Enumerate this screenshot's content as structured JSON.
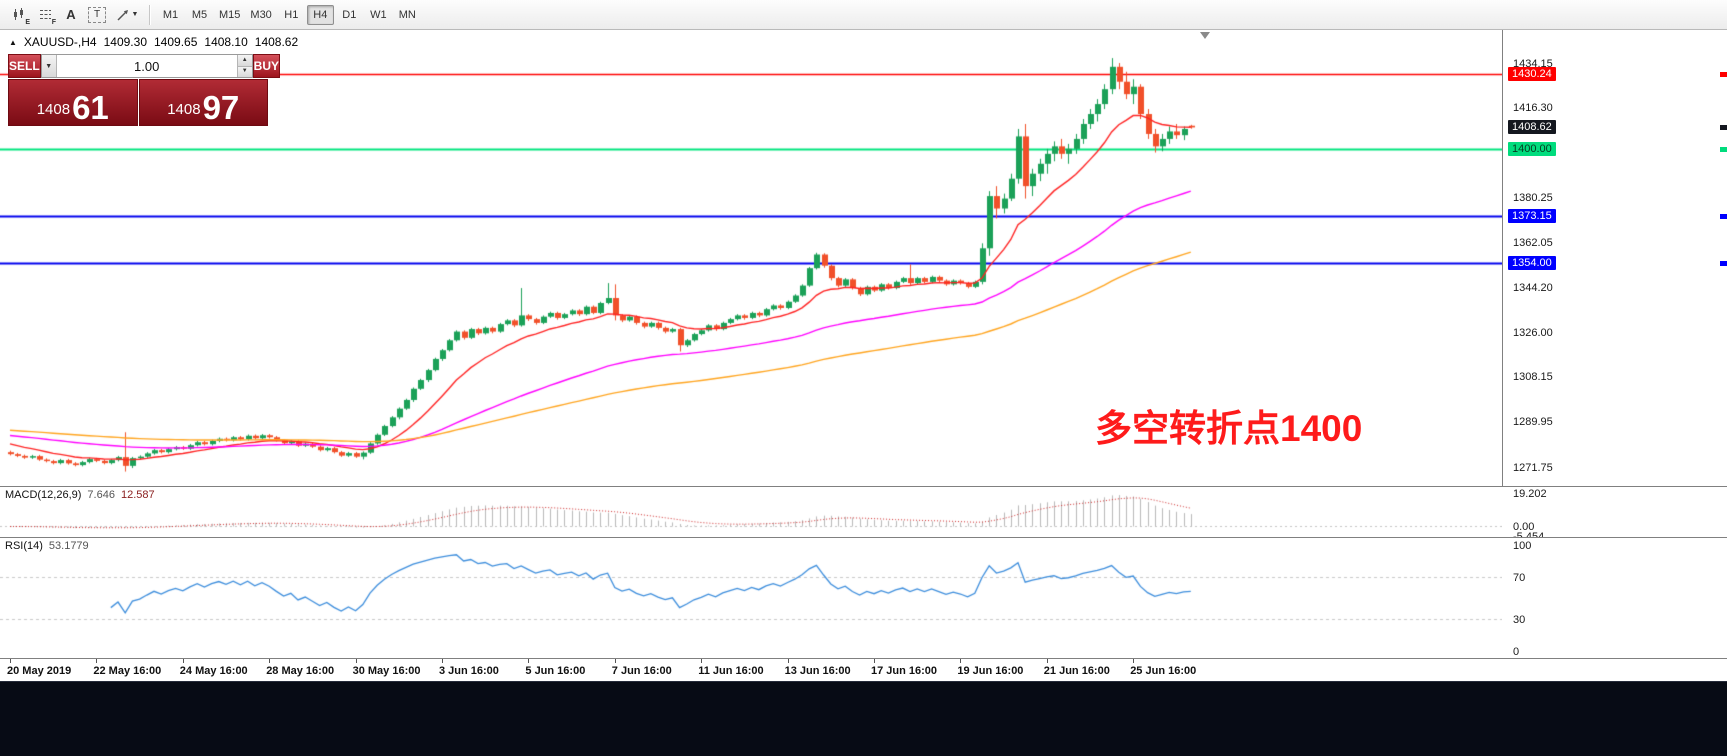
{
  "toolbar": {
    "timeframes": [
      "M1",
      "M5",
      "M15",
      "M30",
      "H1",
      "H4",
      "D1",
      "W1",
      "MN"
    ],
    "active_timeframe": "H4",
    "icon_names": [
      "chart-objects-icon",
      "lines-grid-icon",
      "text-a-icon",
      "text-label-icon",
      "trend-cursor-icon"
    ],
    "text_a": "A",
    "text_t": "T"
  },
  "header": {
    "marker": "▲",
    "symbol": "XAUUSD-,H4",
    "open": "1409.30",
    "high": "1409.65",
    "low": "1408.10",
    "close": "1408.62"
  },
  "trade_panel": {
    "sell": "SELL",
    "buy": "BUY",
    "volume": "1.00",
    "bid": {
      "main": "1408",
      "pips": "61"
    },
    "ask": {
      "main": "1408",
      "pips": "97"
    }
  },
  "annotation": {
    "text": "多空转折点1400",
    "color": "#fe1b1b"
  },
  "price_axis": {
    "ticks": [
      {
        "label": "1434.15",
        "price": 1434.15
      },
      {
        "label": "1416.30",
        "price": 1416.3
      },
      {
        "label": "1380.25",
        "price": 1380.25
      },
      {
        "label": "1362.05",
        "price": 1362.05
      },
      {
        "label": "1344.20",
        "price": 1344.2
      },
      {
        "label": "1326.00",
        "price": 1326.0
      },
      {
        "label": "1308.15",
        "price": 1308.15
      },
      {
        "label": "1289.95",
        "price": 1289.95
      },
      {
        "label": "1271.75",
        "price": 1271.75
      }
    ],
    "badges": [
      {
        "label": "1430.24",
        "price": 1430.24,
        "bg": "#ff0000",
        "fg": "#ffffff"
      },
      {
        "label": "1408.62",
        "price": 1408.62,
        "bg": "#14171f",
        "fg": "#ffffff"
      },
      {
        "label": "1400.00",
        "price": 1400.0,
        "bg": "#00dc7d",
        "fg": "#05391f"
      },
      {
        "label": "1373.15",
        "price": 1373.15,
        "bg": "#0000ff",
        "fg": "#ffffff"
      },
      {
        "label": "1354.00",
        "price": 1354.0,
        "bg": "#0000ff",
        "fg": "#ffffff"
      }
    ]
  },
  "macd": {
    "name": "MACD(12,26,9)",
    "main_value": "7.646",
    "signal_value": "12.587",
    "axis": [
      "19.202",
      "0.00",
      "-5.454"
    ]
  },
  "rsi": {
    "name": "RSI(14)",
    "value": "53.1779",
    "axis": [
      "100",
      "70",
      "30",
      "0"
    ]
  },
  "time_axis": [
    {
      "label": "20 May 2019",
      "bar": 0
    },
    {
      "label": "22 May 16:00",
      "bar": 12
    },
    {
      "label": "24 May 16:00",
      "bar": 24
    },
    {
      "label": "28 May 16:00",
      "bar": 36
    },
    {
      "label": "30 May 16:00",
      "bar": 48
    },
    {
      "label": "3 Jun 16:00",
      "bar": 60
    },
    {
      "label": "5 Jun 16:00",
      "bar": 72
    },
    {
      "label": "7 Jun 16:00",
      "bar": 84
    },
    {
      "label": "11 Jun 16:00",
      "bar": 96
    },
    {
      "label": "13 Jun 16:00",
      "bar": 108
    },
    {
      "label": "17 Jun 16:00",
      "bar": 120
    },
    {
      "label": "19 Jun 16:00",
      "bar": 132
    },
    {
      "label": "21 Jun 16:00",
      "bar": 144
    },
    {
      "label": "25 Jun 16:00",
      "bar": 156
    }
  ],
  "chart_data": {
    "type": "candlestick",
    "symbol": "XAUUSD",
    "timeframe": "H4",
    "price_range": [
      1266,
      1447
    ],
    "up_color": "#1ba158",
    "down_color": "#f1502a",
    "hlines": [
      {
        "price": 1430.24,
        "color": "#ff0000",
        "width": 1.4
      },
      {
        "price": 1400.0,
        "color": "#00e57e",
        "width": 2
      },
      {
        "price": 1373.15,
        "color": "#0000ee",
        "width": 2
      },
      {
        "price": 1354.0,
        "color": "#0000ee",
        "width": 2
      }
    ],
    "mas": [
      {
        "period": 13,
        "seed": 1282,
        "color": "#ff2222",
        "width": 1.4
      },
      {
        "period": 55,
        "seed": 1285,
        "color": "#ff00ff",
        "width": 1.4
      },
      {
        "period": 110,
        "seed": 1287,
        "color": "#ffa520",
        "width": 1.4
      }
    ],
    "macd": {
      "fast": 12,
      "slow": 26,
      "signal": 9,
      "hist_color": "#b9b9b9",
      "signal_color": "#cc2222"
    },
    "rsi": {
      "period": 14,
      "color": "#3c8ddc",
      "levels": [
        70,
        30
      ]
    },
    "candles": [
      [
        1278.0,
        1278.6,
        1276.7,
        1277.2
      ],
      [
        1277.2,
        1277.7,
        1276.0,
        1276.5
      ],
      [
        1276.5,
        1277.0,
        1275.3,
        1275.8
      ],
      [
        1275.8,
        1276.9,
        1275.3,
        1276.4
      ],
      [
        1276.4,
        1276.9,
        1274.5,
        1275.0
      ],
      [
        1275.0,
        1275.5,
        1273.9,
        1274.4
      ],
      [
        1274.4,
        1274.9,
        1273.1,
        1273.6
      ],
      [
        1273.6,
        1275.3,
        1273.1,
        1274.8
      ],
      [
        1274.8,
        1275.3,
        1273.0,
        1273.5
      ],
      [
        1273.5,
        1274.0,
        1272.3,
        1272.8
      ],
      [
        1272.8,
        1274.5,
        1272.3,
        1274.0
      ],
      [
        1274.0,
        1275.7,
        1273.5,
        1275.2
      ],
      [
        1275.2,
        1275.7,
        1274.0,
        1274.5
      ],
      [
        1274.5,
        1275.0,
        1273.1,
        1273.6
      ],
      [
        1273.6,
        1275.3,
        1273.1,
        1274.8
      ],
      [
        1274.8,
        1276.5,
        1274.3,
        1276.0
      ],
      [
        1276.0,
        1286.0,
        1270.2,
        1272.5
      ],
      [
        1272.5,
        1276.1,
        1271.6,
        1275.6
      ],
      [
        1275.6,
        1276.7,
        1275.1,
        1276.2
      ],
      [
        1276.2,
        1278.0,
        1275.7,
        1277.5
      ],
      [
        1277.5,
        1279.3,
        1277.0,
        1278.8
      ],
      [
        1278.8,
        1279.3,
        1277.5,
        1278.0
      ],
      [
        1278.0,
        1279.7,
        1277.5,
        1279.2
      ],
      [
        1279.2,
        1280.5,
        1278.7,
        1280.0
      ],
      [
        1280.0,
        1280.5,
        1278.9,
        1279.4
      ],
      [
        1279.4,
        1281.3,
        1278.9,
        1280.8
      ],
      [
        1280.8,
        1282.5,
        1280.3,
        1282.0
      ],
      [
        1282.0,
        1282.5,
        1280.7,
        1281.2
      ],
      [
        1281.2,
        1283.0,
        1280.7,
        1282.5
      ],
      [
        1282.5,
        1283.9,
        1282.0,
        1283.4
      ],
      [
        1283.4,
        1283.9,
        1282.3,
        1282.8
      ],
      [
        1282.8,
        1284.5,
        1282.3,
        1284.0
      ],
      [
        1284.0,
        1284.5,
        1282.7,
        1283.2
      ],
      [
        1283.2,
        1285.1,
        1282.7,
        1284.6
      ],
      [
        1284.6,
        1285.1,
        1283.1,
        1283.6
      ],
      [
        1283.6,
        1285.3,
        1283.1,
        1284.8
      ],
      [
        1284.8,
        1285.3,
        1283.5,
        1284.0
      ],
      [
        1284.0,
        1284.5,
        1282.3,
        1282.8
      ],
      [
        1282.8,
        1283.3,
        1281.1,
        1281.6
      ],
      [
        1281.6,
        1282.9,
        1281.1,
        1282.4
      ],
      [
        1282.4,
        1282.9,
        1280.1,
        1280.6
      ],
      [
        1280.6,
        1281.9,
        1280.1,
        1281.4
      ],
      [
        1281.4,
        1281.9,
        1279.7,
        1280.2
      ],
      [
        1280.2,
        1280.7,
        1278.3,
        1278.8
      ],
      [
        1278.8,
        1280.1,
        1278.3,
        1279.6
      ],
      [
        1279.6,
        1280.1,
        1277.5,
        1278.0
      ],
      [
        1278.0,
        1278.5,
        1276.1,
        1276.6
      ],
      [
        1276.6,
        1278.1,
        1276.1,
        1277.6
      ],
      [
        1277.6,
        1278.1,
        1275.7,
        1276.2
      ],
      [
        1276.2,
        1278.3,
        1275.1,
        1277.8
      ],
      [
        1277.8,
        1282.0,
        1277.3,
        1281.5
      ],
      [
        1281.5,
        1285.5,
        1281.0,
        1285.0
      ],
      [
        1285.0,
        1289.0,
        1284.5,
        1288.5
      ],
      [
        1288.5,
        1292.5,
        1288.0,
        1292.0
      ],
      [
        1292.0,
        1296.0,
        1291.2,
        1295.5
      ],
      [
        1295.5,
        1299.5,
        1295.0,
        1299.0
      ],
      [
        1299.0,
        1304.0,
        1298.2,
        1303.5
      ],
      [
        1303.5,
        1307.5,
        1303.0,
        1307.0
      ],
      [
        1307.0,
        1311.5,
        1306.2,
        1311.0
      ],
      [
        1311.0,
        1316.0,
        1310.5,
        1315.5
      ],
      [
        1315.5,
        1319.5,
        1314.7,
        1319.0
      ],
      [
        1319.0,
        1323.5,
        1318.5,
        1323.0
      ],
      [
        1323.0,
        1327.0,
        1322.5,
        1326.5
      ],
      [
        1326.5,
        1327.0,
        1323.3,
        1324.0
      ],
      [
        1324.0,
        1328.0,
        1323.5,
        1327.5
      ],
      [
        1327.5,
        1328.0,
        1325.1,
        1325.8
      ],
      [
        1325.8,
        1328.5,
        1325.3,
        1328.0
      ],
      [
        1328.0,
        1328.5,
        1325.8,
        1326.5
      ],
      [
        1326.5,
        1330.0,
        1326.0,
        1329.5
      ],
      [
        1329.5,
        1331.5,
        1329.0,
        1331.0
      ],
      [
        1331.0,
        1331.5,
        1328.3,
        1329.0
      ],
      [
        1329.0,
        1344.0,
        1328.5,
        1333.0
      ],
      [
        1333.0,
        1333.5,
        1330.8,
        1331.5
      ],
      [
        1331.5,
        1332.0,
        1329.3,
        1330.0
      ],
      [
        1330.0,
        1333.0,
        1329.5,
        1332.5
      ],
      [
        1332.5,
        1334.5,
        1332.0,
        1334.0
      ],
      [
        1334.0,
        1334.5,
        1331.3,
        1332.0
      ],
      [
        1332.0,
        1334.0,
        1331.5,
        1333.5
      ],
      [
        1333.5,
        1335.5,
        1333.0,
        1335.0
      ],
      [
        1335.0,
        1335.5,
        1332.8,
        1333.5
      ],
      [
        1333.5,
        1337.0,
        1333.0,
        1336.5
      ],
      [
        1336.5,
        1337.0,
        1333.5,
        1334.0
      ],
      [
        1334.0,
        1338.5,
        1333.5,
        1338.0
      ],
      [
        1338.0,
        1346.0,
        1337.5,
        1340.0
      ],
      [
        1340.0,
        1345.5,
        1331.0,
        1333.0
      ],
      [
        1333.0,
        1333.5,
        1330.3,
        1331.0
      ],
      [
        1331.0,
        1333.0,
        1330.5,
        1332.5
      ],
      [
        1332.5,
        1333.0,
        1329.3,
        1330.0
      ],
      [
        1330.0,
        1330.5,
        1327.8,
        1328.5
      ],
      [
        1328.5,
        1330.5,
        1328.0,
        1330.0
      ],
      [
        1330.0,
        1330.5,
        1327.3,
        1328.0
      ],
      [
        1328.0,
        1328.5,
        1325.8,
        1326.5
      ],
      [
        1326.5,
        1328.0,
        1326.0,
        1327.5
      ],
      [
        1327.5,
        1328.0,
        1318.5,
        1321.0
      ],
      [
        1321.0,
        1323.5,
        1320.3,
        1323.0
      ],
      [
        1323.0,
        1326.0,
        1322.5,
        1325.5
      ],
      [
        1325.5,
        1327.5,
        1325.0,
        1327.0
      ],
      [
        1327.0,
        1329.5,
        1326.5,
        1329.0
      ],
      [
        1329.0,
        1329.5,
        1326.8,
        1327.5
      ],
      [
        1327.5,
        1330.5,
        1327.0,
        1330.0
      ],
      [
        1330.0,
        1332.0,
        1329.5,
        1331.5
      ],
      [
        1331.5,
        1333.5,
        1331.0,
        1333.0
      ],
      [
        1333.0,
        1333.5,
        1331.3,
        1332.0
      ],
      [
        1332.0,
        1334.5,
        1331.5,
        1334.0
      ],
      [
        1334.0,
        1334.5,
        1332.3,
        1333.0
      ],
      [
        1333.0,
        1336.0,
        1332.5,
        1335.5
      ],
      [
        1335.5,
        1337.5,
        1335.0,
        1337.0
      ],
      [
        1337.0,
        1337.5,
        1335.3,
        1336.0
      ],
      [
        1336.0,
        1339.0,
        1335.5,
        1338.5
      ],
      [
        1338.5,
        1341.5,
        1338.0,
        1341.0
      ],
      [
        1341.0,
        1345.5,
        1340.5,
        1345.0
      ],
      [
        1345.0,
        1352.5,
        1344.5,
        1352.0
      ],
      [
        1352.0,
        1358.2,
        1351.5,
        1357.5
      ],
      [
        1357.5,
        1358.0,
        1352.2,
        1353.0
      ],
      [
        1353.0,
        1353.5,
        1347.1,
        1348.0
      ],
      [
        1348.0,
        1348.5,
        1344.3,
        1345.0
      ],
      [
        1345.0,
        1348.0,
        1344.5,
        1347.5
      ],
      [
        1347.5,
        1348.0,
        1343.4,
        1344.0
      ],
      [
        1344.0,
        1344.5,
        1340.8,
        1341.5
      ],
      [
        1341.5,
        1345.0,
        1341.0,
        1344.5
      ],
      [
        1344.5,
        1345.0,
        1342.4,
        1343.0
      ],
      [
        1343.0,
        1346.0,
        1342.5,
        1345.5
      ],
      [
        1345.5,
        1346.0,
        1343.4,
        1344.0
      ],
      [
        1344.0,
        1347.0,
        1343.5,
        1346.5
      ],
      [
        1346.5,
        1348.5,
        1346.0,
        1348.0
      ],
      [
        1348.0,
        1353.5,
        1345.3,
        1346.0
      ],
      [
        1346.0,
        1348.5,
        1345.5,
        1348.0
      ],
      [
        1348.0,
        1348.5,
        1345.9,
        1346.5
      ],
      [
        1346.5,
        1349.0,
        1346.0,
        1348.5
      ],
      [
        1348.5,
        1349.0,
        1346.4,
        1347.0
      ],
      [
        1347.0,
        1347.5,
        1344.9,
        1345.5
      ],
      [
        1345.5,
        1347.5,
        1345.0,
        1347.0
      ],
      [
        1347.0,
        1347.5,
        1345.4,
        1346.0
      ],
      [
        1346.0,
        1346.5,
        1343.9,
        1344.5
      ],
      [
        1344.5,
        1347.0,
        1344.0,
        1346.5
      ],
      [
        1346.5,
        1362.0,
        1345.5,
        1360.0
      ],
      [
        1360.0,
        1383.0,
        1357.0,
        1381.0
      ],
      [
        1381.0,
        1385.0,
        1372.0,
        1376.0
      ],
      [
        1376.0,
        1382.0,
        1374.0,
        1380.0
      ],
      [
        1380.0,
        1390.0,
        1379.0,
        1388.0
      ],
      [
        1388.0,
        1408.0,
        1386.0,
        1405.0
      ],
      [
        1405.0,
        1410.0,
        1380.0,
        1385.0
      ],
      [
        1385.0,
        1392.0,
        1381.0,
        1390.0
      ],
      [
        1390.0,
        1396.0,
        1387.0,
        1394.0
      ],
      [
        1394.0,
        1400.0,
        1390.0,
        1398.0
      ],
      [
        1398.0,
        1403.0,
        1395.0,
        1401.0
      ],
      [
        1401.0,
        1404.0,
        1396.0,
        1398.0
      ],
      [
        1398.0,
        1402.0,
        1394.0,
        1400.0
      ],
      [
        1400.0,
        1406.0,
        1398.0,
        1404.0
      ],
      [
        1404.0,
        1412.0,
        1402.0,
        1410.0
      ],
      [
        1410.0,
        1416.0,
        1408.0,
        1414.0
      ],
      [
        1414.0,
        1420.0,
        1411.0,
        1418.0
      ],
      [
        1418.0,
        1426.0,
        1416.0,
        1424.0
      ],
      [
        1424.0,
        1436.5,
        1422.0,
        1433.0
      ],
      [
        1433.0,
        1434.5,
        1424.0,
        1427.0
      ],
      [
        1427.0,
        1431.0,
        1420.0,
        1422.0
      ],
      [
        1422.0,
        1428.0,
        1418.0,
        1425.0
      ],
      [
        1425.0,
        1426.0,
        1412.0,
        1414.0
      ],
      [
        1414.0,
        1416.0,
        1404.0,
        1406.0
      ],
      [
        1406.0,
        1408.0,
        1398.5,
        1401.0
      ],
      [
        1401.0,
        1406.0,
        1399.0,
        1404.0
      ],
      [
        1404.0,
        1409.0,
        1402.0,
        1407.0
      ],
      [
        1407.0,
        1410.0,
        1404.0,
        1405.5
      ],
      [
        1405.5,
        1409.0,
        1403.5,
        1408.0
      ],
      [
        1409.3,
        1409.65,
        1408.1,
        1408.62
      ]
    ]
  }
}
